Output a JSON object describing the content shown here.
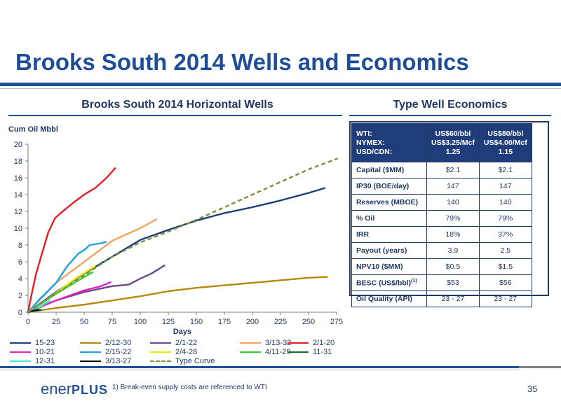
{
  "slide": {
    "title": "Brooks South 2014 Wells and Economics",
    "footnote": "1)  Break-even supply costs are referenced to WTI",
    "page_number": "35",
    "logo": {
      "text_light": "ener",
      "text_bold": "PLUS"
    }
  },
  "chart_data": {
    "type": "line",
    "title": "Brooks South 2014 Horizontal Wells",
    "xlabel": "Days",
    "ylabel": "Cum Oil Mbbl",
    "xlim": [
      0,
      275
    ],
    "ylim": [
      0,
      20
    ],
    "x_ticks": [
      "0",
      "25",
      "50",
      "75",
      "100",
      "125",
      "150",
      "175",
      "200",
      "225",
      "250",
      "275"
    ],
    "y_ticks": [
      "0",
      "2",
      "4",
      "6",
      "8",
      "10",
      "12",
      "14",
      "16",
      "18",
      "20"
    ],
    "grid": false,
    "legend_position": "bottom",
    "series": [
      {
        "name": "15-23",
        "color": "#1f3d7a",
        "dash": false,
        "points": [
          [
            0,
            0
          ],
          [
            25,
            2.4
          ],
          [
            50,
            4.6
          ],
          [
            75,
            6.6
          ],
          [
            100,
            8.6
          ],
          [
            125,
            9.8
          ],
          [
            150,
            10.9
          ],
          [
            175,
            11.8
          ],
          [
            200,
            12.5
          ],
          [
            225,
            13.3
          ],
          [
            250,
            14.2
          ],
          [
            265,
            14.8
          ]
        ]
      },
      {
        "name": "2/12-30",
        "color": "#b8860b",
        "dash": false,
        "points": [
          [
            0,
            0
          ],
          [
            25,
            0.5
          ],
          [
            50,
            0.9
          ],
          [
            75,
            1.4
          ],
          [
            100,
            1.9
          ],
          [
            125,
            2.5
          ],
          [
            150,
            2.9
          ],
          [
            175,
            3.2
          ],
          [
            200,
            3.5
          ],
          [
            225,
            3.8
          ],
          [
            250,
            4.1
          ],
          [
            267,
            4.2
          ]
        ]
      },
      {
        "name": "2/1-22",
        "color": "#6a4a8c",
        "dash": false,
        "points": [
          [
            0,
            0
          ],
          [
            25,
            1.4
          ],
          [
            50,
            2.4
          ],
          [
            75,
            3.1
          ],
          [
            90,
            3.3
          ],
          [
            100,
            4.0
          ],
          [
            110,
            4.6
          ],
          [
            122,
            5.6
          ]
        ]
      },
      {
        "name": "3/13-32",
        "color": "#f4a460",
        "dash": false,
        "points": [
          [
            0,
            0
          ],
          [
            25,
            3.5
          ],
          [
            50,
            6.0
          ],
          [
            75,
            8.5
          ],
          [
            100,
            10.0
          ],
          [
            115,
            11.1
          ]
        ]
      },
      {
        "name": "2/1-20",
        "color": "#e31e24",
        "dash": false,
        "points": [
          [
            0,
            0
          ],
          [
            3,
            2.0
          ],
          [
            7,
            4.5
          ],
          [
            12,
            6.8
          ],
          [
            18,
            9.5
          ],
          [
            24,
            11.2
          ],
          [
            30,
            11.9
          ],
          [
            40,
            13.0
          ],
          [
            50,
            14.0
          ],
          [
            60,
            14.8
          ],
          [
            70,
            16.0
          ],
          [
            78,
            17.2
          ]
        ]
      },
      {
        "name": "10-21",
        "color": "#e020c0",
        "dash": false,
        "points": [
          [
            0,
            0
          ],
          [
            25,
            1.4
          ],
          [
            50,
            2.6
          ],
          [
            65,
            3.1
          ],
          [
            74,
            3.6
          ]
        ]
      },
      {
        "name": "2/15-22",
        "color": "#1aa3e0",
        "dash": false,
        "points": [
          [
            0,
            0
          ],
          [
            10,
            1.5
          ],
          [
            25,
            3.5
          ],
          [
            35,
            5.5
          ],
          [
            45,
            7.0
          ],
          [
            50,
            7.4
          ],
          [
            55,
            8.0
          ],
          [
            65,
            8.2
          ],
          [
            70,
            8.4
          ]
        ]
      },
      {
        "name": "2/4-28",
        "color": "#f2e600",
        "dash": false,
        "points": [
          [
            0,
            0
          ],
          [
            20,
            1.8
          ],
          [
            40,
            3.8
          ],
          [
            55,
            5.1
          ],
          [
            60,
            5.5
          ]
        ]
      },
      {
        "name": "4/11-29",
        "color": "#33cc33",
        "dash": false,
        "points": [
          [
            0,
            0
          ],
          [
            25,
            2.2
          ],
          [
            45,
            3.8
          ],
          [
            58,
            4.8
          ]
        ]
      },
      {
        "name": "11-31",
        "color": "#1b6b2a",
        "dash": false,
        "points": [
          [
            0,
            0
          ],
          [
            6,
            0.2
          ],
          [
            12,
            0.3
          ]
        ]
      },
      {
        "name": "12-31",
        "color": "#40e0d0",
        "dash": false,
        "points": [
          [
            0,
            0
          ],
          [
            10,
            0.6
          ],
          [
            20,
            1.4
          ]
        ]
      },
      {
        "name": "3/13-27",
        "color": "#111111",
        "dash": false,
        "points": [
          [
            0,
            0
          ],
          [
            5,
            0.2
          ],
          [
            10,
            0.3
          ]
        ]
      },
      {
        "name": "Type Curve",
        "color": "#77933c",
        "dash": true,
        "points": [
          [
            0,
            0
          ],
          [
            25,
            2.2
          ],
          [
            50,
            4.4
          ],
          [
            75,
            6.6
          ],
          [
            100,
            8.3
          ],
          [
            125,
            9.6
          ],
          [
            150,
            11.0
          ],
          [
            175,
            12.5
          ],
          [
            200,
            14.0
          ],
          [
            225,
            15.5
          ],
          [
            250,
            17.0
          ],
          [
            276,
            18.3
          ]
        ]
      }
    ]
  },
  "economics": {
    "title": "Type Well Economics",
    "header": {
      "label": "WTI:\nNYMEX:\nUSD/CDN:",
      "col1": "US$60/bbl\nUS$3.25/Mcf\n1.25",
      "col2": "US$80/bbl\nUS$4.00/Mcf\n1.15"
    },
    "rows": [
      {
        "label": "Capital ($MM)",
        "v1": "$2.1",
        "v2": "$2.1"
      },
      {
        "label": "IP30 (BOE/day)",
        "v1": "147",
        "v2": "147"
      },
      {
        "label": "Reserves (MBOE)",
        "v1": "140",
        "v2": "140"
      },
      {
        "label": "% Oil",
        "v1": "79%",
        "v2": "79%"
      },
      {
        "label": "IRR",
        "v1": "18%",
        "v2": "37%"
      },
      {
        "label": "Payout (years)",
        "v1": "3.9",
        "v2": "2.5"
      },
      {
        "label": "NPV10 ($MM)",
        "v1": "$0.5",
        "v2": "$1.5"
      },
      {
        "label": "BESC (US$/bbl)",
        "sup": "(1)",
        "v1": "$53",
        "v2": "$56"
      },
      {
        "label": "Oil Quality (API)",
        "v1": "23 - 27",
        "v2": "23 - 27"
      }
    ]
  }
}
